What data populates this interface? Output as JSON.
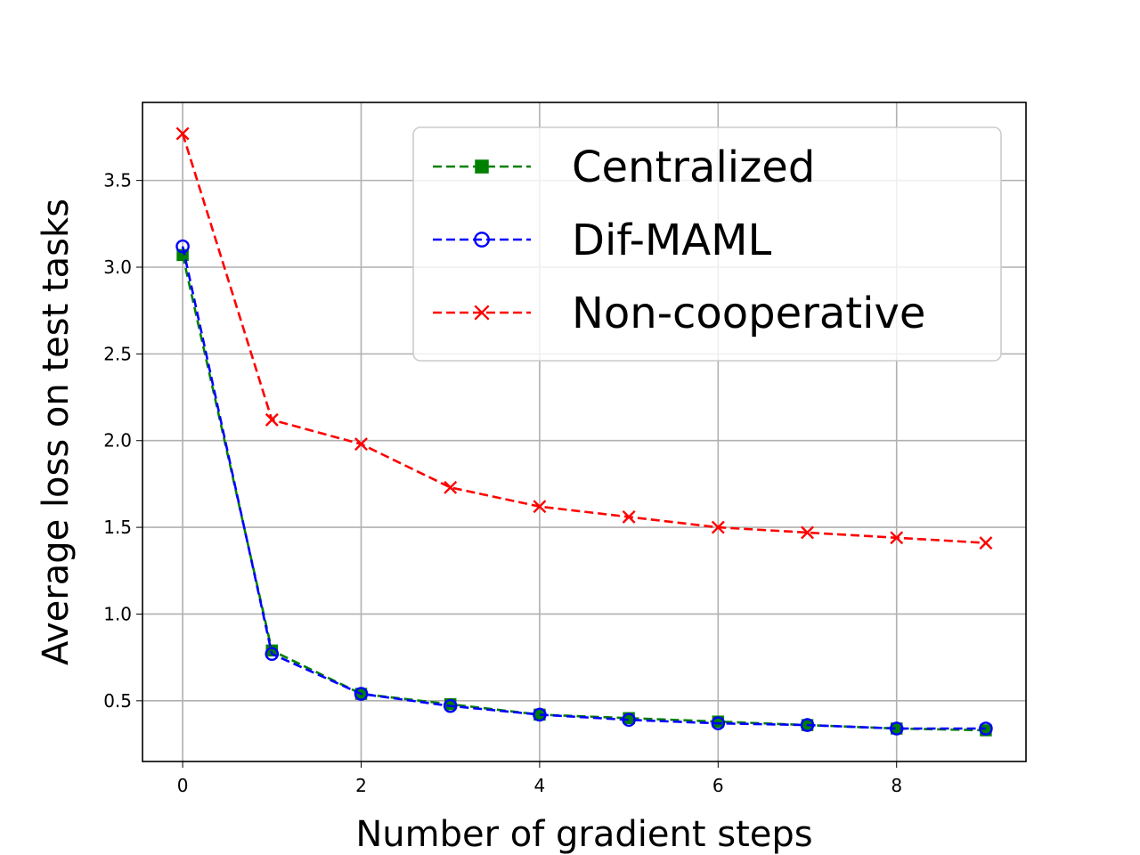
{
  "chart_data": {
    "type": "line",
    "xlabel": "Number of gradient steps",
    "ylabel": "Average loss on test tasks",
    "xlim": [
      -0.45,
      9.45
    ],
    "ylim": [
      0.15,
      3.95
    ],
    "x_ticks": [
      0,
      2,
      4,
      6,
      8
    ],
    "x_tick_labels": [
      "0",
      "2",
      "4",
      "6",
      "8"
    ],
    "y_ticks": [
      0.5,
      1.0,
      1.5,
      2.0,
      2.5,
      3.0,
      3.5
    ],
    "y_tick_labels": [
      "0.5",
      "1.0",
      "1.5",
      "2.0",
      "2.5",
      "3.0",
      "3.5"
    ],
    "grid": true,
    "legend_position": "top-right",
    "x": [
      0,
      1,
      2,
      3,
      4,
      5,
      6,
      7,
      8,
      9
    ],
    "series": [
      {
        "name": "Centralized",
        "color": "#008000",
        "line_style": "dashed",
        "marker": "filled-square",
        "values": [
          3.07,
          0.79,
          0.54,
          0.48,
          0.42,
          0.4,
          0.38,
          0.36,
          0.34,
          0.33
        ]
      },
      {
        "name": "Dif-MAML",
        "color": "#0000ff",
        "line_style": "dashed",
        "marker": "open-circle",
        "values": [
          3.12,
          0.77,
          0.54,
          0.47,
          0.42,
          0.39,
          0.37,
          0.36,
          0.34,
          0.34
        ]
      },
      {
        "name": "Non-cooperative",
        "color": "#ff0000",
        "line_style": "dashed",
        "marker": "x",
        "values": [
          3.77,
          2.12,
          1.98,
          1.73,
          1.62,
          1.56,
          1.5,
          1.47,
          1.44,
          1.41
        ]
      }
    ]
  }
}
